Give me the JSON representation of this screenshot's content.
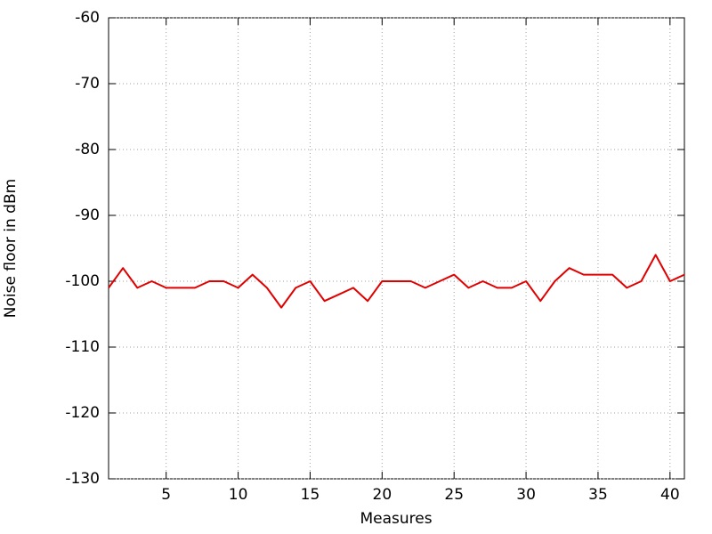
{
  "chart_data": {
    "type": "line",
    "xlabel": "Measures",
    "ylabel": "Noise floor in dBm",
    "x": [
      1,
      2,
      3,
      4,
      5,
      6,
      7,
      8,
      9,
      10,
      11,
      12,
      13,
      14,
      15,
      16,
      17,
      18,
      19,
      20,
      21,
      22,
      23,
      24,
      25,
      26,
      27,
      28,
      29,
      30,
      31,
      32,
      33,
      34,
      35,
      36,
      37,
      38,
      39,
      40,
      41
    ],
    "values": [
      -101,
      -98,
      -101,
      -100,
      -101,
      -101,
      -101,
      -100,
      -100,
      -101,
      -99,
      -101,
      -104,
      -101,
      -100,
      -103,
      -102,
      -101,
      -103,
      -100,
      -100,
      -100,
      -101,
      -100,
      -99,
      -101,
      -100,
      -101,
      -101,
      -100,
      -103,
      -100,
      -98,
      -99,
      -99,
      -99,
      -101,
      -100,
      -96,
      -100,
      -99
    ],
    "color": "#e00000",
    "xlim": [
      1,
      41
    ],
    "xticks": [
      5,
      10,
      15,
      20,
      25,
      30,
      35,
      40
    ],
    "ylim": [
      -130,
      -60
    ],
    "yticks": [
      -130,
      -120,
      -110,
      -100,
      -90,
      -80,
      -70,
      -60
    ],
    "grid": true
  }
}
